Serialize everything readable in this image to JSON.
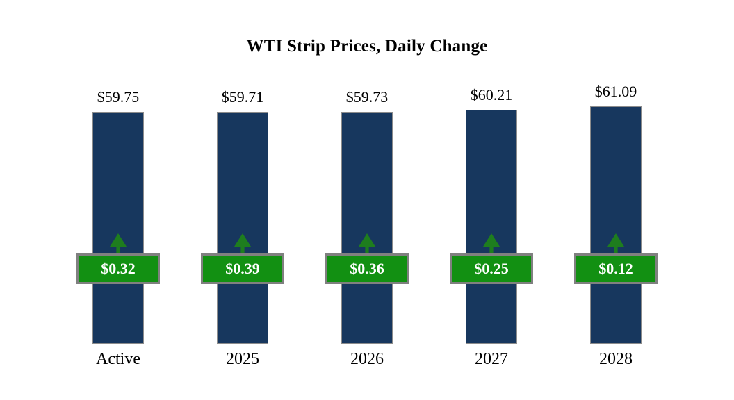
{
  "title": "WTI Strip Prices, Daily Change",
  "chart_data": {
    "type": "bar",
    "title": "WTI Strip Prices, Daily Change",
    "categories": [
      "Active",
      "2025",
      "2026",
      "2027",
      "2028"
    ],
    "series": [
      {
        "name": "Strip Price",
        "values": [
          59.75,
          59.71,
          59.73,
          60.21,
          61.09
        ],
        "labels": [
          "$59.75",
          "$59.71",
          "$59.73",
          "$60.21",
          "$61.09"
        ]
      },
      {
        "name": "Daily Change",
        "values": [
          0.32,
          0.39,
          0.36,
          0.25,
          0.12
        ],
        "labels": [
          "$0.32",
          "$0.39",
          "$0.36",
          "$0.25",
          "$0.12"
        ]
      }
    ],
    "ylim": [
      0,
      61.09
    ],
    "grid": false,
    "legend_position": "none",
    "axis_lines": "none",
    "annotations": "green boxes with upward arrows overlay each bar showing the daily change",
    "colors": {
      "bar": "#17375E",
      "bar_border": "#8C8C8C",
      "change_box": "#129012",
      "change_box_border": "#808080",
      "change_box_text": "#FFFFFF",
      "arrow": "#1E7D1E",
      "value_text": "#000000",
      "background": "#FFFFFF"
    }
  }
}
